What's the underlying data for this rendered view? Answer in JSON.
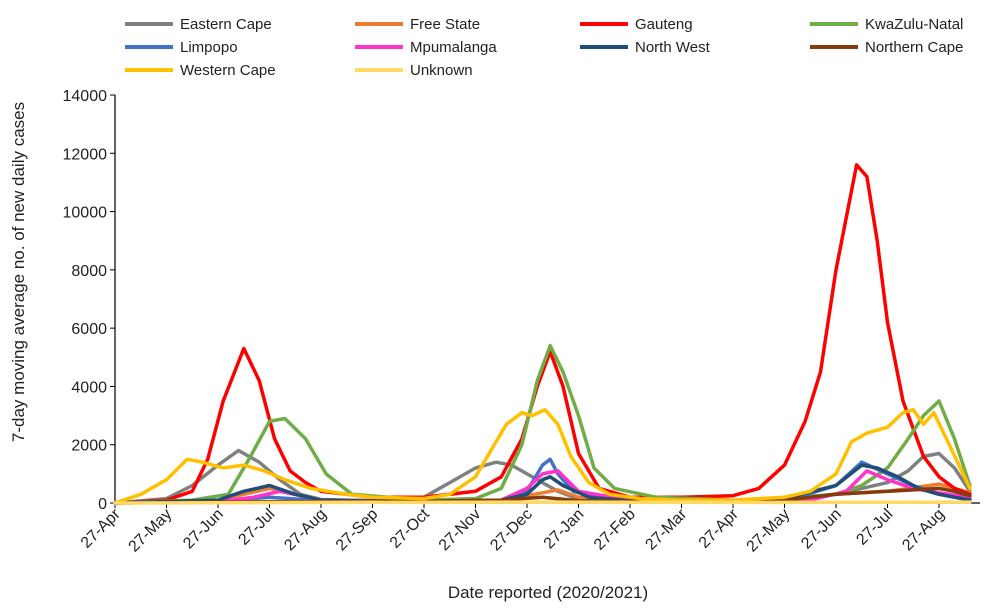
{
  "chart_data": {
    "type": "line",
    "title": "",
    "xlabel": "Date reported (2020/2021)",
    "ylabel": "7-day moving average no. of new daily cases",
    "ylim": [
      0,
      14000
    ],
    "yticks": [
      "0",
      "2000",
      "4000",
      "6000",
      "8000",
      "10000",
      "12000",
      "14000"
    ],
    "xticks": [
      "27-Apr",
      "27-May",
      "27-Jun",
      "27-Jul",
      "27-Aug",
      "27-Sep",
      "27-Oct",
      "27-Nov",
      "27-Dec",
      "27-Jan",
      "27-Feb",
      "27-Mar",
      "27-Apr",
      "27-May",
      "27-Jun",
      "27-Jul",
      "27-Aug"
    ],
    "x_unit": "months since 27-Apr-2020",
    "legend_position": "top",
    "series": [
      {
        "name": "Eastern Cape",
        "color": "#808080",
        "x": [
          0,
          1,
          1.5,
          2,
          2.4,
          2.8,
          3.2,
          3.6,
          4,
          5,
          6,
          6.5,
          7,
          7.4,
          7.7,
          8,
          8.3,
          8.6,
          8.9,
          9.3,
          10,
          11,
          12,
          13,
          14,
          14.5,
          15,
          15.4,
          15.7,
          16,
          16.3,
          16.6
        ],
        "y": [
          0,
          150,
          600,
          1300,
          1800,
          1400,
          800,
          300,
          120,
          80,
          200,
          700,
          1200,
          1400,
          1300,
          1000,
          700,
          400,
          200,
          80,
          40,
          40,
          60,
          100,
          300,
          500,
          700,
          1100,
          1600,
          1700,
          1200,
          400
        ]
      },
      {
        "name": "Free State",
        "color": "#ED7D31",
        "x": [
          0,
          2,
          2.5,
          3,
          3.5,
          4,
          6,
          7.5,
          8.3,
          8.6,
          9,
          10,
          12,
          13,
          14,
          15,
          16,
          16.6
        ],
        "y": [
          0,
          100,
          300,
          500,
          300,
          100,
          50,
          100,
          350,
          450,
          200,
          50,
          50,
          150,
          300,
          400,
          650,
          350
        ]
      },
      {
        "name": "Gauteng",
        "color": "#FF0000",
        "x": [
          0,
          1,
          1.5,
          1.8,
          2.1,
          2.5,
          2.8,
          3.1,
          3.4,
          3.7,
          4,
          5,
          6,
          7,
          7.5,
          7.9,
          8.2,
          8.45,
          8.7,
          9.0,
          9.4,
          10,
          11,
          12,
          12.5,
          13,
          13.4,
          13.7,
          14,
          14.2,
          14.4,
          14.6,
          14.8,
          15.0,
          15.3,
          15.7,
          16,
          16.3,
          16.6
        ],
        "y": [
          0,
          100,
          400,
          1500,
          3500,
          5300,
          4200,
          2200,
          1100,
          700,
          400,
          200,
          200,
          400,
          900,
          2200,
          4000,
          5200,
          4000,
          1700,
          500,
          200,
          200,
          250,
          500,
          1300,
          2800,
          4500,
          8000,
          9800,
          11600,
          11200,
          9000,
          6200,
          3500,
          1600,
          900,
          500,
          300
        ]
      },
      {
        "name": "KwaZulu-Natal",
        "color": "#70AD47",
        "x": [
          0,
          1.5,
          2.2,
          2.6,
          3.0,
          3.3,
          3.7,
          4.1,
          4.6,
          6,
          7,
          7.5,
          7.9,
          8.2,
          8.45,
          8.7,
          9.0,
          9.3,
          9.7,
          10.5,
          12,
          13,
          14,
          14.5,
          15,
          15.4,
          15.7,
          16,
          16.3,
          16.6
        ],
        "y": [
          0,
          100,
          300,
          1500,
          2800,
          2900,
          2200,
          1000,
          300,
          100,
          150,
          500,
          2000,
          4200,
          5400,
          4500,
          3000,
          1200,
          500,
          200,
          100,
          150,
          300,
          600,
          1200,
          2200,
          3000,
          3500,
          2200,
          600
        ]
      },
      {
        "name": "Limpopo",
        "color": "#4472C4",
        "x": [
          0,
          2,
          3,
          4,
          6,
          7.5,
          8,
          8.3,
          8.45,
          8.6,
          8.9,
          9.5,
          11,
          13,
          14,
          14.5,
          15,
          15.5,
          16,
          16.6
        ],
        "y": [
          0,
          50,
          200,
          80,
          40,
          80,
          400,
          1300,
          1500,
          1000,
          400,
          150,
          40,
          60,
          600,
          1400,
          1000,
          600,
          300,
          150
        ]
      },
      {
        "name": "Mpumalanga",
        "color": "#FF33CC",
        "x": [
          0,
          2,
          2.7,
          3.2,
          4,
          6,
          7.5,
          8.0,
          8.3,
          8.6,
          9,
          10,
          12,
          13.5,
          14.2,
          14.6,
          15,
          15.5,
          16,
          16.6
        ],
        "y": [
          0,
          50,
          200,
          400,
          100,
          40,
          100,
          500,
          1000,
          1100,
          400,
          100,
          40,
          100,
          400,
          1100,
          800,
          500,
          350,
          200
        ]
      },
      {
        "name": "North West",
        "color": "#1F4E79",
        "x": [
          0,
          2,
          2.5,
          3,
          3.5,
          4,
          6,
          7.5,
          8,
          8.3,
          8.45,
          8.7,
          9.2,
          10,
          12,
          13,
          14,
          14.5,
          14.8,
          15.2,
          15.6,
          16,
          16.6
        ],
        "y": [
          0,
          100,
          400,
          600,
          300,
          100,
          50,
          100,
          300,
          800,
          900,
          600,
          200,
          80,
          50,
          150,
          600,
          1300,
          1200,
          900,
          500,
          300,
          100
        ]
      },
      {
        "name": "Northern Cape",
        "color": "#843C0C",
        "x": [
          0,
          3,
          6,
          7.5,
          8.3,
          9,
          12,
          13,
          14,
          15,
          15.5,
          16,
          16.3,
          16.6
        ],
        "y": [
          0,
          40,
          60,
          100,
          200,
          80,
          40,
          100,
          300,
          400,
          450,
          500,
          400,
          250
        ]
      },
      {
        "name": "Western Cape",
        "color": "#FFC000",
        "x": [
          0,
          0.5,
          1,
          1.4,
          1.7,
          2.1,
          2.5,
          2.9,
          3.3,
          3.8,
          4.5,
          5,
          6,
          6.5,
          7,
          7.3,
          7.6,
          7.9,
          8.1,
          8.35,
          8.6,
          8.85,
          9.2,
          9.6,
          10.2,
          11,
          12,
          13,
          13.5,
          14,
          14.3,
          14.6,
          15,
          15.3,
          15.5,
          15.7,
          15.9,
          16.2,
          16.6
        ],
        "y": [
          0,
          300,
          800,
          1500,
          1400,
          1200,
          1300,
          1100,
          800,
          500,
          300,
          200,
          150,
          300,
          900,
          1800,
          2700,
          3100,
          3000,
          3200,
          2700,
          1600,
          700,
          300,
          150,
          100,
          100,
          200,
          400,
          1000,
          2100,
          2400,
          2600,
          3100,
          3200,
          2700,
          3100,
          2000,
          500
        ]
      },
      {
        "name": "Unknown",
        "color": "#FFD966",
        "x": [
          0,
          4,
          8,
          12,
          16.6
        ],
        "y": [
          0,
          20,
          30,
          20,
          30
        ]
      }
    ]
  }
}
